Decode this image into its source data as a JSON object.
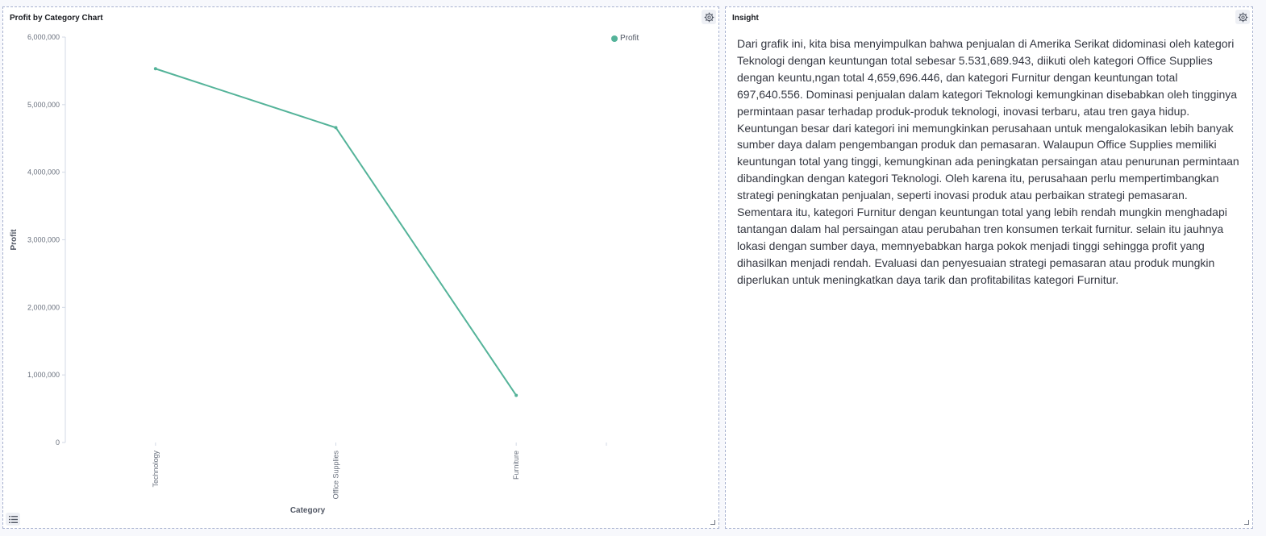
{
  "chart_panel": {
    "title": "Profit by Category Chart"
  },
  "insight_panel": {
    "title": "Insight",
    "text": "Dari grafik ini, kita bisa menyimpulkan bahwa penjualan di Amerika Serikat didominasi oleh kategori Teknologi dengan keuntungan total sebesar 5.531,689.943, diikuti oleh kategori Office Supplies dengan keuntu,ngan total 4,659,696.446, dan kategori Furnitur dengan keuntungan total 697,640.556. Dominasi penjualan dalam kategori Teknologi kemungkinan disebabkan oleh tingginya permintaan pasar terhadap produk-produk teknologi, inovasi terbaru, atau tren gaya hidup. Keuntungan besar dari kategori ini memungkinkan perusahaan untuk mengalokasikan lebih banyak sumber daya dalam pengembangan produk dan pemasaran. Walaupun Office Supplies memiliki keuntungan total yang tinggi, kemungkinan ada peningkatan persaingan atau penurunan permintaan dibandingkan dengan kategori Teknologi. Oleh karena itu, perusahaan perlu mempertimbangkan strategi peningkatan penjualan, seperti inovasi produk atau perbaikan strategi pemasaran. Sementara itu, kategori Furnitur dengan keuntungan total yang lebih rendah mungkin menghadapi tantangan dalam hal persaingan atau perubahan tren konsumen terkait furnitur. selain itu jauhnya lokasi dengan sumber daya, memnyebabkan harga pokok menjadi tinggi sehingga profit yang dihasilkan menjadi rendah. Evaluasi dan penyesuaian strategi pemasaran atau produk mungkin diperlukan untuk meningkatkan daya tarik dan profitabilitas kategori Furnitur."
  },
  "icons": {
    "settings": "gear-icon",
    "legend_toggle": "list-icon",
    "resize": "resize-handle-icon"
  },
  "colors": {
    "series": "#54b399",
    "panel_border": "#a7b1cf"
  },
  "chart_data": {
    "type": "line",
    "categories": [
      "Technology",
      "Office Supplies",
      "Furniture"
    ],
    "series": [
      {
        "name": "Profit",
        "values": [
          5531689.943,
          4659696.446,
          697640.556
        ]
      }
    ],
    "xlabel": "Category",
    "ylabel": "Profit",
    "ylim": [
      0,
      6000000
    ],
    "yticks": [
      "0",
      "1,000,000",
      "2,000,000",
      "3,000,000",
      "4,000,000",
      "5,000,000",
      "6,000,000"
    ],
    "legend": "top-right",
    "grid": false
  }
}
